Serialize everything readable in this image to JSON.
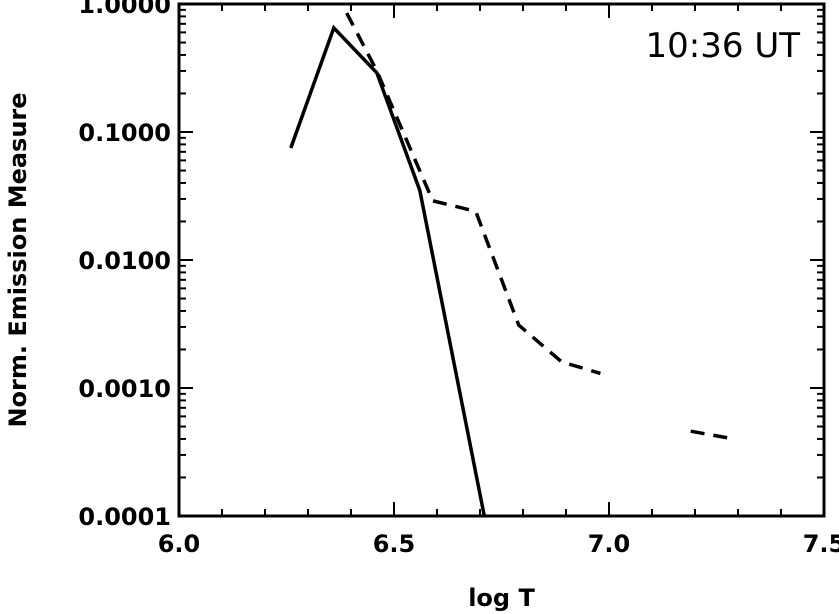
{
  "chart_data": {
    "type": "line",
    "title": "",
    "xlabel": "log T",
    "ylabel": "Norm. Emission Measure",
    "annotation": "10:36 UT",
    "x_scale": "linear",
    "y_scale": "log",
    "xlim": [
      6.0,
      7.5
    ],
    "ylim": [
      0.0001,
      1.0
    ],
    "x_ticks": [
      6.0,
      6.5,
      7.0,
      7.5
    ],
    "x_tick_labels": [
      "6.0",
      "6.5",
      "7.0",
      "7.5"
    ],
    "y_ticks": [
      0.0001,
      0.001,
      0.01,
      0.1,
      1.0
    ],
    "y_tick_labels": [
      "0.0001",
      "0.0010",
      "0.0100",
      "0.1000",
      "1.0000"
    ],
    "grid": false,
    "legend": false,
    "colors": {
      "line": "#000000",
      "background": "#ffffff"
    },
    "series": [
      {
        "style": "solid",
        "x": [
          6.26,
          6.36,
          6.46,
          6.56,
          6.71
        ],
        "y": [
          0.075,
          0.65,
          0.29,
          0.035,
          0.0001
        ]
      },
      {
        "style": "dashed",
        "x": [
          6.39,
          6.46,
          6.59,
          6.69,
          6.79,
          6.89,
          6.98
        ],
        "y": [
          0.85,
          0.3,
          0.029,
          0.024,
          0.0031,
          0.0016,
          0.0013
        ]
      },
      {
        "style": "dashed",
        "x": [
          7.19,
          7.29
        ],
        "y": [
          0.00046,
          0.0004
        ]
      }
    ]
  }
}
